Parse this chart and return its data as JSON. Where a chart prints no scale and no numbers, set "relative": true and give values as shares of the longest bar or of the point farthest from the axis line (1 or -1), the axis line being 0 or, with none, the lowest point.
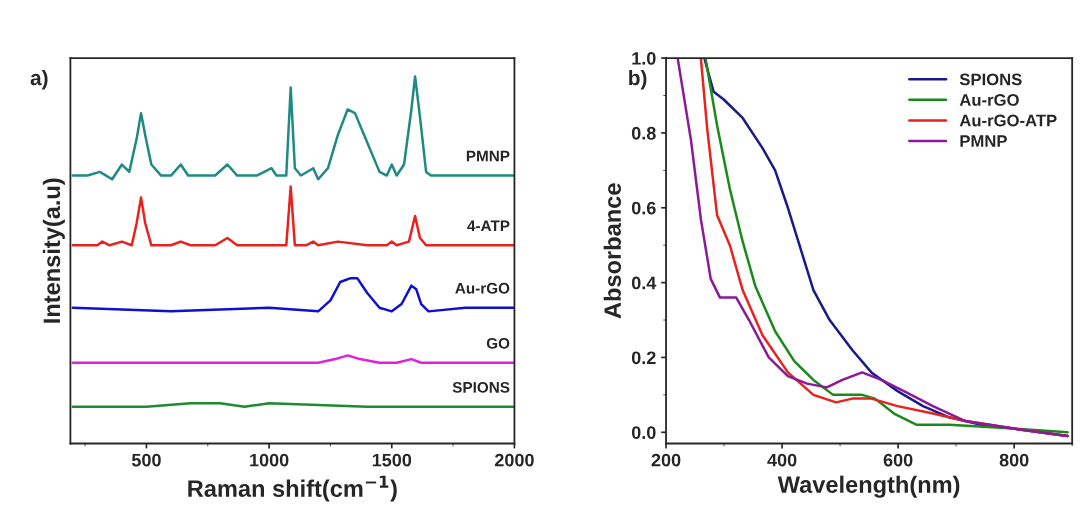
{
  "chart_data": [
    {
      "type": "line",
      "title": "a)",
      "xlabel": "Raman shift(cm$^{−1}$)",
      "ylabel": "Intensity(a.u)",
      "relative": true,
      "legend": false,
      "grid": false,
      "xlim": [
        190,
        2000
      ],
      "xticks": [
        500,
        1000,
        1500,
        2000
      ],
      "series": [
        {
          "name": "PMNP",
          "color": "#1f8a84",
          "x": [
            200,
            230,
            260,
            310,
            360,
            400,
            430,
            460,
            478,
            495,
            520,
            560,
            600,
            640,
            670,
            720,
            780,
            830,
            870,
            950,
            1010,
            1030,
            1070,
            1088,
            1105,
            1130,
            1180,
            1200,
            1240,
            1280,
            1320,
            1350,
            1400,
            1450,
            1480,
            1500,
            1520,
            1550,
            1580,
            1595,
            1615,
            1640,
            1660,
            1800,
            2000
          ],
          "values": [
            0.73,
            0.73,
            0.73,
            0.74,
            0.72,
            0.76,
            0.74,
            0.83,
            0.9,
            0.84,
            0.76,
            0.73,
            0.73,
            0.76,
            0.73,
            0.73,
            0.73,
            0.76,
            0.73,
            0.73,
            0.75,
            0.73,
            0.73,
            0.97,
            0.75,
            0.73,
            0.75,
            0.72,
            0.75,
            0.84,
            0.91,
            0.9,
            0.82,
            0.74,
            0.73,
            0.76,
            0.73,
            0.76,
            0.91,
            1.0,
            0.89,
            0.74,
            0.73,
            0.73,
            0.73
          ]
        },
        {
          "name": "4-ATP",
          "color": "#e8231e",
          "x": [
            200,
            300,
            320,
            350,
            400,
            440,
            460,
            478,
            495,
            520,
            600,
            640,
            680,
            780,
            830,
            870,
            1000,
            1070,
            1088,
            1105,
            1150,
            1180,
            1200,
            1280,
            1400,
            1480,
            1500,
            1520,
            1570,
            1595,
            1615,
            1640,
            2000
          ],
          "values": [
            0.54,
            0.54,
            0.55,
            0.54,
            0.55,
            0.54,
            0.6,
            0.67,
            0.6,
            0.54,
            0.54,
            0.55,
            0.54,
            0.54,
            0.56,
            0.54,
            0.54,
            0.54,
            0.7,
            0.54,
            0.54,
            0.55,
            0.54,
            0.55,
            0.54,
            0.54,
            0.55,
            0.54,
            0.55,
            0.62,
            0.56,
            0.54,
            0.54
          ]
        },
        {
          "name": "Au-rGO",
          "color": "#1010d0",
          "x": [
            200,
            600,
            1000,
            1200,
            1250,
            1290,
            1330,
            1360,
            1400,
            1450,
            1500,
            1540,
            1580,
            1600,
            1620,
            1650,
            1800,
            2000
          ],
          "values": [
            0.37,
            0.36,
            0.37,
            0.36,
            0.39,
            0.44,
            0.45,
            0.45,
            0.41,
            0.37,
            0.36,
            0.38,
            0.43,
            0.42,
            0.38,
            0.36,
            0.37,
            0.37
          ]
        },
        {
          "name": "GO",
          "color": "#e020e0",
          "x": [
            200,
            800,
            1200,
            1270,
            1320,
            1370,
            1450,
            1520,
            1580,
            1620,
            1700,
            2000
          ],
          "values": [
            0.22,
            0.22,
            0.22,
            0.23,
            0.24,
            0.23,
            0.22,
            0.22,
            0.23,
            0.22,
            0.22,
            0.22
          ]
        },
        {
          "name": "SPIONS",
          "color": "#1f8a2f",
          "x": [
            200,
            500,
            680,
            800,
            900,
            1000,
            1400,
            1750,
            2000
          ],
          "values": [
            0.1,
            0.1,
            0.11,
            0.11,
            0.1,
            0.11,
            0.1,
            0.1,
            0.1
          ]
        }
      ]
    },
    {
      "type": "line",
      "title": "b)",
      "xlabel": "Wavelength(nm)",
      "ylabel": "Absorbance",
      "legend": "top right",
      "grid": false,
      "xlim": [
        200,
        900
      ],
      "xticks": [
        200,
        400,
        600,
        800
      ],
      "ylim": [
        -0.03,
        1.0
      ],
      "yticks": [
        {
          "value": 0,
          "label": "0.0"
        },
        {
          "value": 0.2,
          "label": "0.2"
        },
        {
          "value": 0.4,
          "label": "0.4"
        },
        {
          "value": 0.6,
          "label": "0.6"
        },
        {
          "value": 0.8,
          "label": "0.8"
        },
        {
          "value": 1.0,
          "label": "1.0"
        }
      ],
      "series": [
        {
          "name": "SPIONS",
          "color": "#1a1a8c",
          "x": [
            266,
            282,
            299,
            332,
            366,
            388,
            410,
            432,
            454,
            482,
            521,
            554,
            599,
            643,
            688,
            743,
            799,
            892
          ],
          "values": [
            1.0,
            0.91,
            0.89,
            0.84,
            0.76,
            0.7,
            0.6,
            0.49,
            0.38,
            0.3,
            0.22,
            0.16,
            0.11,
            0.07,
            0.04,
            0.02,
            0.01,
            -0.01
          ]
        },
        {
          "name": "Au-rGO",
          "color": "#1a8a1a",
          "x": [
            268,
            288,
            310,
            332,
            354,
            388,
            421,
            454,
            488,
            510,
            538,
            560,
            593,
            632,
            688,
            799,
            892
          ],
          "values": [
            1.0,
            0.82,
            0.65,
            0.51,
            0.39,
            0.27,
            0.19,
            0.14,
            0.1,
            0.1,
            0.1,
            0.09,
            0.05,
            0.02,
            0.02,
            0.01,
            0.0
          ]
        },
        {
          "name": "Au-rGO-ATP",
          "color": "#e8231e",
          "x": [
            260,
            271,
            288,
            310,
            332,
            366,
            410,
            454,
            493,
            521,
            554,
            599,
            660,
            716,
            799,
            892
          ],
          "values": [
            1.0,
            0.81,
            0.58,
            0.5,
            0.38,
            0.26,
            0.16,
            0.1,
            0.08,
            0.09,
            0.09,
            0.07,
            0.05,
            0.03,
            0.01,
            -0.01
          ]
        },
        {
          "name": "PMNP",
          "color": "#8b1a9b",
          "x": [
            220,
            243,
            260,
            277,
            293,
            321,
            343,
            377,
            410,
            443,
            477,
            504,
            538,
            571,
            610,
            660,
            716,
            799,
            892
          ],
          "values": [
            1.0,
            0.78,
            0.57,
            0.41,
            0.36,
            0.36,
            0.3,
            0.2,
            0.15,
            0.13,
            0.12,
            0.14,
            0.16,
            0.14,
            0.11,
            0.07,
            0.03,
            0.01,
            -0.01
          ]
        }
      ]
    }
  ]
}
